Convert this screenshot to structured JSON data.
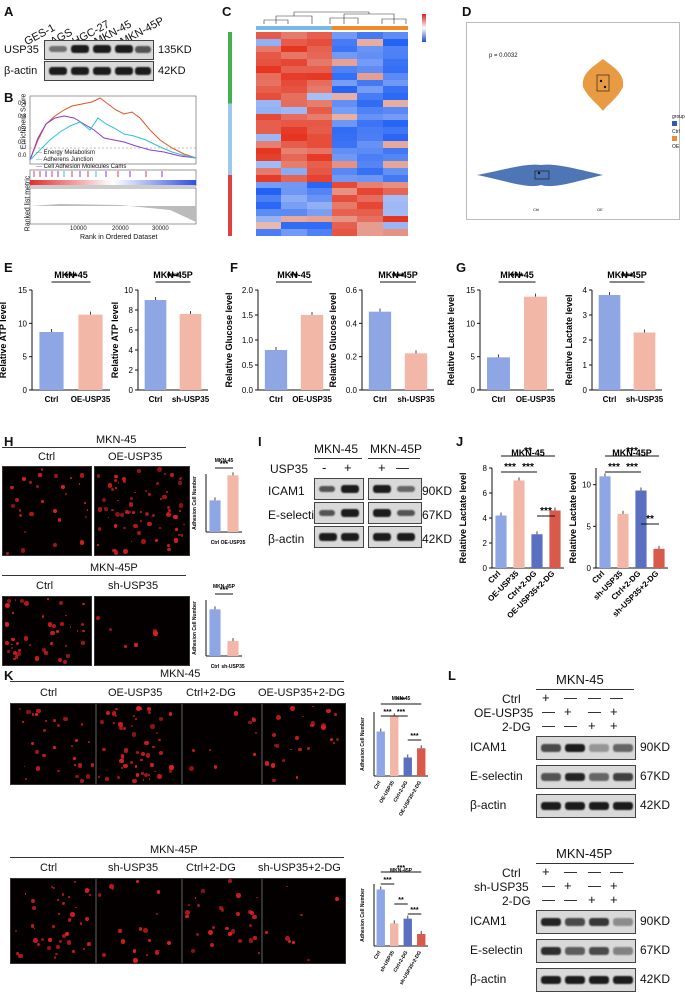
{
  "colors": {
    "ctrl": "#8ea7e4",
    "oe": "#f2b7a6",
    "dark": "#5a6fc0",
    "red": "#d9594a",
    "fluoBg": "#050000",
    "cell": "#e21f1f"
  },
  "panels": {
    "A": "A",
    "B": "B",
    "C": "C",
    "D": "D",
    "E": "E",
    "F": "F",
    "G": "G",
    "H": "H",
    "I": "I",
    "J": "J",
    "K": "K",
    "L": "L"
  },
  "A": {
    "lanes": [
      "GES-1",
      "AGS",
      "HGC-27",
      "MKN-45",
      "MKN-45P"
    ],
    "rows": [
      {
        "name": "USP35",
        "kd": "135KD"
      },
      {
        "name": "β-actin",
        "kd": "42KD"
      }
    ]
  },
  "B": {
    "ylabel": "Enrichment Score",
    "ylabel2": "Ranked list metric",
    "xlabel": "Rank in Ordered Dataset",
    "legend": [
      "Energy Metabolism",
      "Adherens Junction",
      "Cell Adhesion Molecules Cams"
    ],
    "xticks": [
      "10000",
      "20000",
      "30000"
    ],
    "yticks": [
      "0.4",
      "0.3",
      "0.2",
      "0.1",
      "0.0"
    ]
  },
  "D": {
    "pvalue": "p = 0.0032",
    "legend_title": "group",
    "groups": [
      "Ctrl",
      "OE"
    ]
  },
  "E": {
    "charts": [
      {
        "title": "MKN-45",
        "ylabel": "Relative ATP level",
        "categories": [
          "Ctrl",
          "OE-USP35"
        ],
        "values": [
          8.7,
          11.3
        ],
        "ylim": [
          0,
          15
        ],
        "yticks": [
          "0",
          "5",
          "10",
          "15"
        ],
        "sig": "***"
      },
      {
        "title": "MKN-45P",
        "ylabel": "Relative ATP level",
        "categories": [
          "Ctrl",
          "sh-USP35"
        ],
        "values": [
          9.0,
          7.6
        ],
        "ylim": [
          0,
          10
        ],
        "yticks": [
          "0",
          "2",
          "4",
          "6",
          "8",
          "10"
        ],
        "sig": "***"
      }
    ]
  },
  "F": {
    "charts": [
      {
        "title": "MKN-45",
        "ylabel": "Relative Glucose level",
        "categories": [
          "Ctrl",
          "OE-USP35"
        ],
        "values": [
          0.8,
          1.5
        ],
        "ylim": [
          0,
          2.0
        ],
        "yticks": [
          "0.0",
          "0.5",
          "1.0",
          "1.5",
          "2.0"
        ],
        "sig": "**"
      },
      {
        "title": "MKN-45P",
        "ylabel": "Relative Glucose level",
        "categories": [
          "Ctrl",
          "sh-USP35"
        ],
        "values": [
          0.47,
          0.22
        ],
        "ylim": [
          0,
          0.6
        ],
        "yticks": [
          "0.0",
          "0.2",
          "0.4",
          "0.6"
        ],
        "sig": "***"
      }
    ]
  },
  "G": {
    "charts": [
      {
        "title": "MKN-45",
        "ylabel": "Relative Lactate level",
        "categories": [
          "Ctrl",
          "OE-USP35"
        ],
        "values": [
          4.9,
          14.0
        ],
        "ylim": [
          0,
          15
        ],
        "yticks": [
          "0",
          "5",
          "10",
          "15"
        ],
        "sig": "***"
      },
      {
        "title": "MKN-45P",
        "ylabel": "Relative Lactate level",
        "categories": [
          "Ctrl",
          "sh-USP35"
        ],
        "values": [
          3.8,
          2.3
        ],
        "ylim": [
          0,
          4
        ],
        "yticks": [
          "0",
          "1",
          "2",
          "3",
          "4"
        ],
        "sig": "***"
      }
    ]
  },
  "H": {
    "top": {
      "title": "MKN-45",
      "labels": [
        "Ctrl",
        "OE-USP35"
      ]
    },
    "bottom": {
      "title": "MKN-45P",
      "labels": [
        "Ctrl",
        "sh-USP35"
      ]
    },
    "charts": [
      {
        "title": "MKN-45",
        "ylabel": "Adhesion Cell Number",
        "categories": [
          "Ctrl",
          "OE-USP35"
        ],
        "values": [
          120,
          215
        ],
        "ylim": [
          0,
          220
        ],
        "sig": "***"
      },
      {
        "title": "MKN-45P",
        "ylabel": "Adhesion Cell Number",
        "categories": [
          "Ctrl",
          "sh-USP35"
        ],
        "values": [
          125,
          40
        ],
        "ylim": [
          0,
          150
        ],
        "sig": "***"
      }
    ]
  },
  "I": {
    "groups": [
      "MKN-45",
      "MKN-45P"
    ],
    "usp35_label": "USP35",
    "signs": [
      "-",
      "+",
      "+",
      "—"
    ],
    "rows": [
      {
        "name": "ICAM1",
        "kd": "90KD"
      },
      {
        "name": "E-selectin",
        "kd": "67KD"
      },
      {
        "name": "β-actin",
        "kd": "42KD"
      }
    ]
  },
  "J": {
    "charts": [
      {
        "title": "MKN-45",
        "ylabel": "Relative Lactate level",
        "categories": [
          "Ctrl",
          "OE-USP35",
          "Ctrl+2-DG",
          "OE-USP35+2-DG"
        ],
        "values": [
          4.2,
          7.0,
          2.7,
          4.6
        ],
        "ylim": [
          0,
          8
        ],
        "yticks": [
          "0",
          "2",
          "4",
          "6",
          "8"
        ],
        "sigs": [
          "**",
          "***",
          "***",
          "***"
        ]
      },
      {
        "title": "MKN-45P",
        "ylabel": "Relative Lactate level",
        "categories": [
          "Ctrl",
          "sh-USP35",
          "Ctrl+2-DG",
          "sh-USP35+2-DG"
        ],
        "values": [
          11.0,
          6.5,
          9.3,
          2.3
        ],
        "ylim": [
          0,
          12
        ],
        "yticks": [
          "0",
          "5",
          "10"
        ],
        "sigs": [
          "***",
          "***",
          "***",
          "**"
        ]
      }
    ]
  },
  "K": {
    "top": {
      "title": "MKN-45",
      "labels": [
        "Ctrl",
        "OE-USP35",
        "Ctrl+2-DG",
        "OE-USP35+2-DG"
      ]
    },
    "bottom": {
      "title": "MKN-45P",
      "labels": [
        "Ctrl",
        "sh-USP35",
        "Ctrl+2-DG",
        "sh-USP35+2-DG"
      ]
    },
    "charts": [
      {
        "title": "MKN-45",
        "ylabel": "Adhesion Cell Number",
        "categories": [
          "Ctrl",
          "OE-USP35",
          "Ctrl+2-DG",
          "OE-USP35+2-DG"
        ],
        "values": [
          125,
          168,
          52,
          78
        ],
        "ylim": [
          0,
          180
        ],
        "sigs": [
          "***",
          "***",
          "***",
          "***"
        ]
      },
      {
        "title": "MKN-45P",
        "ylabel": "Adhesion Cell Number",
        "categories": [
          "Ctrl",
          "sh-USP35",
          "Ctrl+2-DG",
          "sh-USP35+2-DG"
        ],
        "values": [
          155,
          62,
          75,
          33
        ],
        "ylim": [
          0,
          170
        ],
        "sigs": [
          "***",
          "***",
          "**",
          "***"
        ]
      }
    ]
  },
  "L": {
    "top": {
      "title": "MKN-45",
      "conds": [
        "Ctrl",
        "OE-USP35",
        "2-DG"
      ],
      "signs": [
        [
          "+",
          "—",
          "—",
          "—"
        ],
        [
          "—",
          "+",
          "—",
          "+"
        ],
        [
          "—",
          "—",
          "+",
          "+"
        ]
      ]
    },
    "bottom": {
      "title": "MKN-45P",
      "conds": [
        "Ctrl",
        "sh-USP35",
        "2-DG"
      ],
      "signs": [
        [
          "+",
          "—",
          "—",
          "—"
        ],
        [
          "—",
          "+",
          "—",
          "+"
        ],
        [
          "—",
          "—",
          "+",
          "+"
        ]
      ]
    },
    "rows": [
      {
        "name": "ICAM1",
        "kd": "90KD"
      },
      {
        "name": "E-selectin",
        "kd": "67KD"
      },
      {
        "name": "β-actin",
        "kd": "42KD"
      }
    ]
  }
}
